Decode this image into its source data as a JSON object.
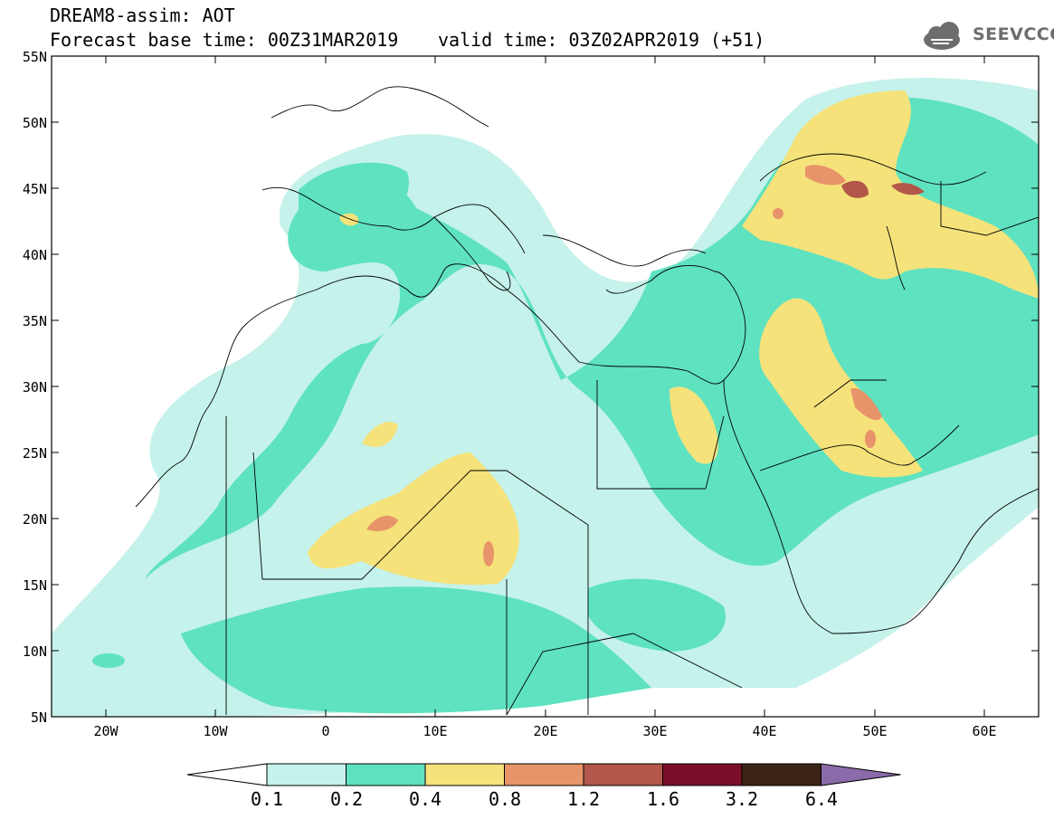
{
  "header": {
    "line1": "DREAM8-assim: AOT",
    "line2": "Forecast base time: 00Z31MAR2019",
    "line3": "valid time: 03Z02APR2019 (+51)"
  },
  "logo": {
    "text": "SEEVCCC",
    "icon": "cloud-icon"
  },
  "axes": {
    "lat": [
      "55N",
      "50N",
      "45N",
      "40N",
      "35N",
      "30N",
      "25N",
      "20N",
      "15N",
      "10N",
      "5N"
    ],
    "lon": [
      "20W",
      "10W",
      "0",
      "10E",
      "20E",
      "30E",
      "40E",
      "50E",
      "60E"
    ]
  },
  "colorbar": {
    "labels": [
      "0.1",
      "0.2",
      "0.4",
      "0.8",
      "1.2",
      "1.6",
      "3.2",
      "6.4"
    ],
    "colors": [
      "#ffffff",
      "#c5f2ea",
      "#5fe2c0",
      "#f5e27a",
      "#e8946a",
      "#b2574a",
      "#7a0f2a",
      "#3b2415",
      "#8a6aa8"
    ]
  },
  "chart_data": {
    "type": "heatmap",
    "title": "DREAM8-assim: AOT",
    "variable": "AOT",
    "lat_range": [
      "5N",
      "55N"
    ],
    "lon_range": [
      "25W",
      "65E"
    ],
    "levels": [
      0.1,
      0.2,
      0.4,
      0.8,
      1.2,
      1.6,
      3.2,
      6.4
    ]
  }
}
